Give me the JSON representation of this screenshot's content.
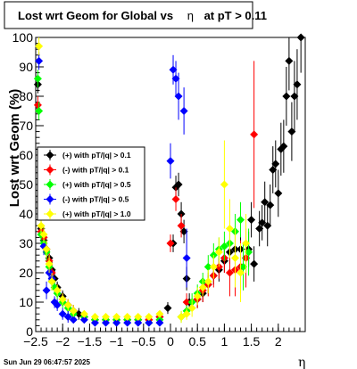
{
  "chart_data": {
    "type": "scatter",
    "title": "Lost wrt Geom for Global vs η at pT > 0.11",
    "title_parts": [
      "Lost wrt Geom for Global vs",
      "η",
      "at pT > 0.11"
    ],
    "xlabel": "η",
    "ylabel": "Lost wrt Geom (%)",
    "xlim": [
      -2.5,
      2.5
    ],
    "ylim": [
      0,
      100
    ],
    "x_ticks": [
      "−2.5",
      "−2",
      "−1.5",
      "−1",
      "−0.5",
      "0",
      "0.5",
      "1",
      "1.5",
      "2"
    ],
    "x_tick_values": [
      -2.5,
      -2,
      -1.5,
      -1,
      -0.5,
      0,
      0.5,
      1,
      1.5,
      2
    ],
    "y_ticks": [
      "0",
      "10",
      "20",
      "30",
      "40",
      "50",
      "60",
      "70",
      "80",
      "90",
      "100"
    ],
    "y_tick_values": [
      0,
      10,
      20,
      30,
      40,
      50,
      60,
      70,
      80,
      90,
      100
    ],
    "grid": false,
    "legend_position": "left-middle",
    "footer": "Sun Jun 29 06:47:57 2025",
    "series": [
      {
        "name": "(+) with pT/|q| > 0.1",
        "color": "#000000",
        "points": [
          [
            -2.46,
            84,
            3
          ],
          [
            -2.4,
            35,
            3
          ],
          [
            -2.35,
            31,
            3
          ],
          [
            -2.3,
            28,
            3
          ],
          [
            -2.25,
            25,
            3
          ],
          [
            -2.2,
            21,
            3
          ],
          [
            -2.15,
            18,
            3
          ],
          [
            -2.1,
            15,
            2
          ],
          [
            -2.0,
            12,
            2
          ],
          [
            -1.9,
            9,
            2
          ],
          [
            -1.8,
            7,
            2
          ],
          [
            -1.7,
            6,
            2
          ],
          [
            -1.6,
            5,
            1
          ],
          [
            -1.4,
            4,
            1
          ],
          [
            -1.2,
            4,
            1
          ],
          [
            -1.0,
            4,
            1
          ],
          [
            -0.8,
            4,
            1
          ],
          [
            -0.6,
            4,
            1
          ],
          [
            -0.4,
            4,
            1
          ],
          [
            -0.2,
            5,
            1
          ],
          [
            -0.05,
            8,
            2
          ],
          [
            0.05,
            30,
            3
          ],
          [
            0.1,
            49,
            4
          ],
          [
            0.15,
            50,
            4
          ],
          [
            0.2,
            40,
            4
          ],
          [
            0.25,
            34,
            4
          ],
          [
            0.3,
            18,
            4
          ],
          [
            0.35,
            10,
            3
          ],
          [
            0.5,
            11,
            3
          ],
          [
            0.6,
            13,
            3
          ],
          [
            0.7,
            16,
            3
          ],
          [
            0.8,
            19,
            3
          ],
          [
            0.9,
            21,
            4
          ],
          [
            1.0,
            24,
            4
          ],
          [
            1.1,
            27,
            4
          ],
          [
            1.2,
            28,
            5
          ],
          [
            1.3,
            28,
            5
          ],
          [
            1.4,
            25,
            5
          ],
          [
            1.45,
            28,
            6
          ],
          [
            1.5,
            38,
            6
          ],
          [
            1.55,
            23,
            6
          ],
          [
            1.65,
            35,
            6
          ],
          [
            1.7,
            37,
            6
          ],
          [
            1.75,
            44,
            7
          ],
          [
            1.8,
            36,
            7
          ],
          [
            1.85,
            43,
            7
          ],
          [
            1.9,
            55,
            8
          ],
          [
            1.95,
            57,
            8
          ],
          [
            2.0,
            47,
            8
          ],
          [
            2.05,
            62,
            9
          ],
          [
            2.1,
            63,
            9
          ],
          [
            2.15,
            80,
            10
          ],
          [
            2.2,
            92,
            10
          ],
          [
            2.25,
            68,
            10
          ],
          [
            2.3,
            80,
            12
          ],
          [
            2.35,
            84,
            12
          ],
          [
            2.42,
            100,
            12
          ]
        ]
      },
      {
        "name": "(-) with pT/|q| > 0.1",
        "color": "#ff0000",
        "points": [
          [
            -2.46,
            77,
            3
          ],
          [
            -2.4,
            34,
            3
          ],
          [
            -2.35,
            32,
            3
          ],
          [
            -2.3,
            28,
            3
          ],
          [
            -2.25,
            24,
            3
          ],
          [
            -2.2,
            20,
            3
          ],
          [
            -2.1,
            14,
            2
          ],
          [
            -2.0,
            11,
            2
          ],
          [
            -1.9,
            9,
            2
          ],
          [
            -1.8,
            7,
            2
          ],
          [
            -1.6,
            5,
            1
          ],
          [
            -1.4,
            4,
            1
          ],
          [
            -1.2,
            4,
            1
          ],
          [
            -1.0,
            4,
            1
          ],
          [
            -0.8,
            4,
            1
          ],
          [
            -0.6,
            4,
            1
          ],
          [
            -0.4,
            4,
            1
          ],
          [
            -0.2,
            5,
            1
          ],
          [
            0.0,
            30,
            3
          ],
          [
            0.1,
            45,
            4
          ],
          [
            0.2,
            36,
            4
          ],
          [
            0.3,
            10,
            3
          ],
          [
            0.5,
            11,
            3
          ],
          [
            0.6,
            14,
            4
          ],
          [
            0.7,
            16,
            4
          ],
          [
            0.8,
            19,
            4
          ],
          [
            0.9,
            22,
            4
          ],
          [
            1.0,
            25,
            5
          ],
          [
            1.1,
            20,
            8
          ],
          [
            1.2,
            21,
            9
          ],
          [
            1.3,
            22,
            9
          ],
          [
            1.4,
            25,
            10
          ],
          [
            1.55,
            67,
            25
          ]
        ]
      },
      {
        "name": "(+) with pT/|q| > 0.5",
        "color": "#00ff00",
        "points": [
          [
            -2.46,
            86,
            3
          ],
          [
            -2.44,
            75,
            3
          ],
          [
            -2.4,
            33,
            3
          ],
          [
            -2.35,
            30,
            3
          ],
          [
            -2.3,
            27,
            3
          ],
          [
            -2.25,
            22,
            3
          ],
          [
            -2.2,
            17,
            3
          ],
          [
            -2.15,
            15,
            2
          ],
          [
            -2.1,
            13,
            2
          ],
          [
            -2.0,
            10,
            2
          ],
          [
            -1.9,
            8,
            2
          ],
          [
            -1.8,
            6,
            2
          ],
          [
            -1.6,
            5,
            1
          ],
          [
            -1.4,
            4,
            1
          ],
          [
            -1.2,
            4,
            1
          ],
          [
            -1.0,
            4,
            1
          ],
          [
            -0.8,
            4,
            1
          ],
          [
            -0.6,
            4,
            1
          ],
          [
            -0.4,
            3,
            1
          ],
          [
            -0.2,
            4,
            1
          ],
          [
            0.2,
            5,
            2
          ],
          [
            0.3,
            7,
            2
          ],
          [
            0.4,
            10,
            3
          ],
          [
            0.5,
            13,
            3
          ],
          [
            0.6,
            17,
            3
          ],
          [
            0.7,
            22,
            4
          ],
          [
            0.8,
            26,
            4
          ],
          [
            0.9,
            28,
            4
          ],
          [
            1.0,
            29,
            5
          ],
          [
            1.1,
            30,
            5
          ],
          [
            1.2,
            34,
            6
          ],
          [
            1.3,
            38,
            6
          ],
          [
            1.35,
            22,
            8
          ],
          [
            1.45,
            27,
            8
          ]
        ]
      },
      {
        "name": "(-) with pT/|q| > 0.5",
        "color": "#0000ff",
        "points": [
          [
            -2.44,
            92,
            3
          ],
          [
            -2.35,
            29,
            3
          ],
          [
            -2.3,
            14,
            3
          ],
          [
            -2.25,
            20,
            3
          ],
          [
            -2.2,
            18,
            3
          ],
          [
            -2.15,
            10,
            2
          ],
          [
            -2.1,
            9,
            2
          ],
          [
            -2.0,
            6,
            2
          ],
          [
            -1.9,
            5,
            2
          ],
          [
            -1.8,
            4,
            1
          ],
          [
            -1.6,
            4,
            1
          ],
          [
            -1.4,
            3,
            1
          ],
          [
            -1.2,
            3,
            1
          ],
          [
            -1.0,
            3,
            1
          ],
          [
            -0.8,
            3,
            1
          ],
          [
            -0.6,
            3,
            1
          ],
          [
            -0.4,
            3,
            1
          ],
          [
            -0.2,
            3,
            1
          ],
          [
            0.0,
            58,
            6
          ],
          [
            0.05,
            89,
            5
          ],
          [
            0.1,
            86,
            6
          ],
          [
            0.15,
            80,
            8
          ],
          [
            0.25,
            75,
            8
          ],
          [
            0.3,
            25,
            10
          ]
        ]
      },
      {
        "name": "(+) with pT/|q| > 1.0",
        "color": "#ffff00",
        "points": [
          [
            -2.44,
            97,
            3
          ],
          [
            -2.4,
            36,
            3
          ],
          [
            -2.35,
            33,
            3
          ],
          [
            -2.3,
            28,
            3
          ],
          [
            -2.25,
            23,
            3
          ],
          [
            -2.2,
            17,
            3
          ],
          [
            -2.1,
            14,
            2
          ],
          [
            -2.0,
            11,
            2
          ],
          [
            -1.9,
            9,
            2
          ],
          [
            -1.8,
            7,
            2
          ],
          [
            -1.6,
            6,
            1
          ],
          [
            -1.4,
            5,
            1
          ],
          [
            -1.2,
            5,
            1
          ],
          [
            -1.0,
            5,
            1
          ],
          [
            -0.8,
            5,
            1
          ],
          [
            -0.6,
            5,
            1
          ],
          [
            -0.4,
            5,
            1
          ],
          [
            -0.2,
            6,
            1
          ],
          [
            0.2,
            5,
            2
          ],
          [
            0.3,
            6,
            2
          ],
          [
            0.4,
            8,
            3
          ],
          [
            0.5,
            12,
            3
          ],
          [
            0.6,
            15,
            3
          ],
          [
            0.7,
            17,
            4
          ],
          [
            0.8,
            22,
            4
          ],
          [
            0.9,
            27,
            5
          ],
          [
            1.0,
            50,
            15
          ],
          [
            1.1,
            35,
            10
          ],
          [
            1.2,
            25,
            10
          ],
          [
            1.3,
            20,
            10
          ],
          [
            1.4,
            30,
            10
          ]
        ]
      }
    ]
  }
}
